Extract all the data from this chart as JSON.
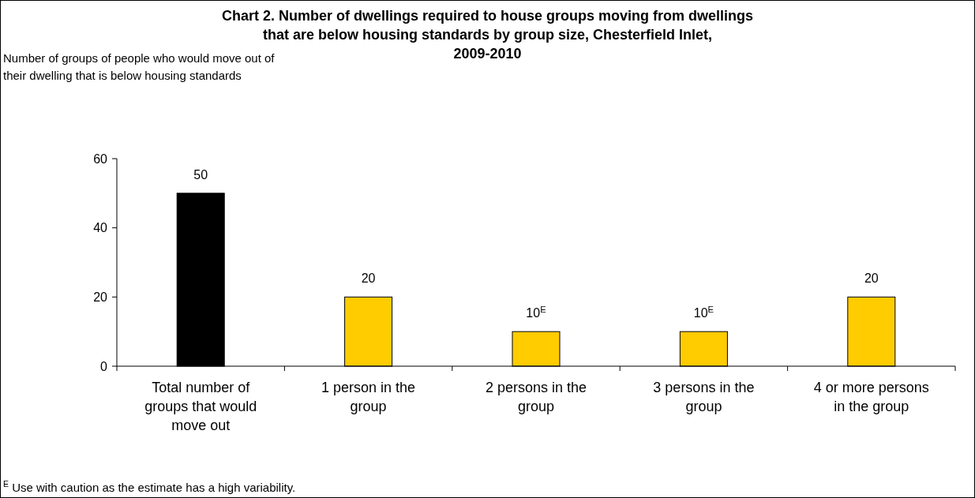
{
  "chart_data": {
    "type": "bar",
    "title": "Chart 2. Number of dwellings required to house groups moving from dwellings that are below housing standards by group size, Chesterfield Inlet, 2009-2010",
    "annotations": [
      "Number of groups of people who would move out of their dwelling that is below housing standards",
      "$^{E}$ Use with caution as the estimate has a high variability."
    ],
    "categories": [
      "Total number of groups that would move out",
      "1 person in the group",
      "2 persons in the group",
      "3 persons in the group",
      "4 or more persons in the group"
    ],
    "values": [
      50,
      20,
      10,
      10,
      20
    ],
    "colors": [
      "#000000",
      "#ffcc00",
      "#ffcc00",
      "#ffcc00",
      "#ffcc00"
    ],
    "value_labels": [
      "50",
      "20",
      "10$^{E}$",
      "10$^{E}$",
      "20"
    ],
    "ylim": [
      0,
      60
    ],
    "yticks": [
      0,
      20,
      40,
      60
    ],
    "grid": false
  }
}
